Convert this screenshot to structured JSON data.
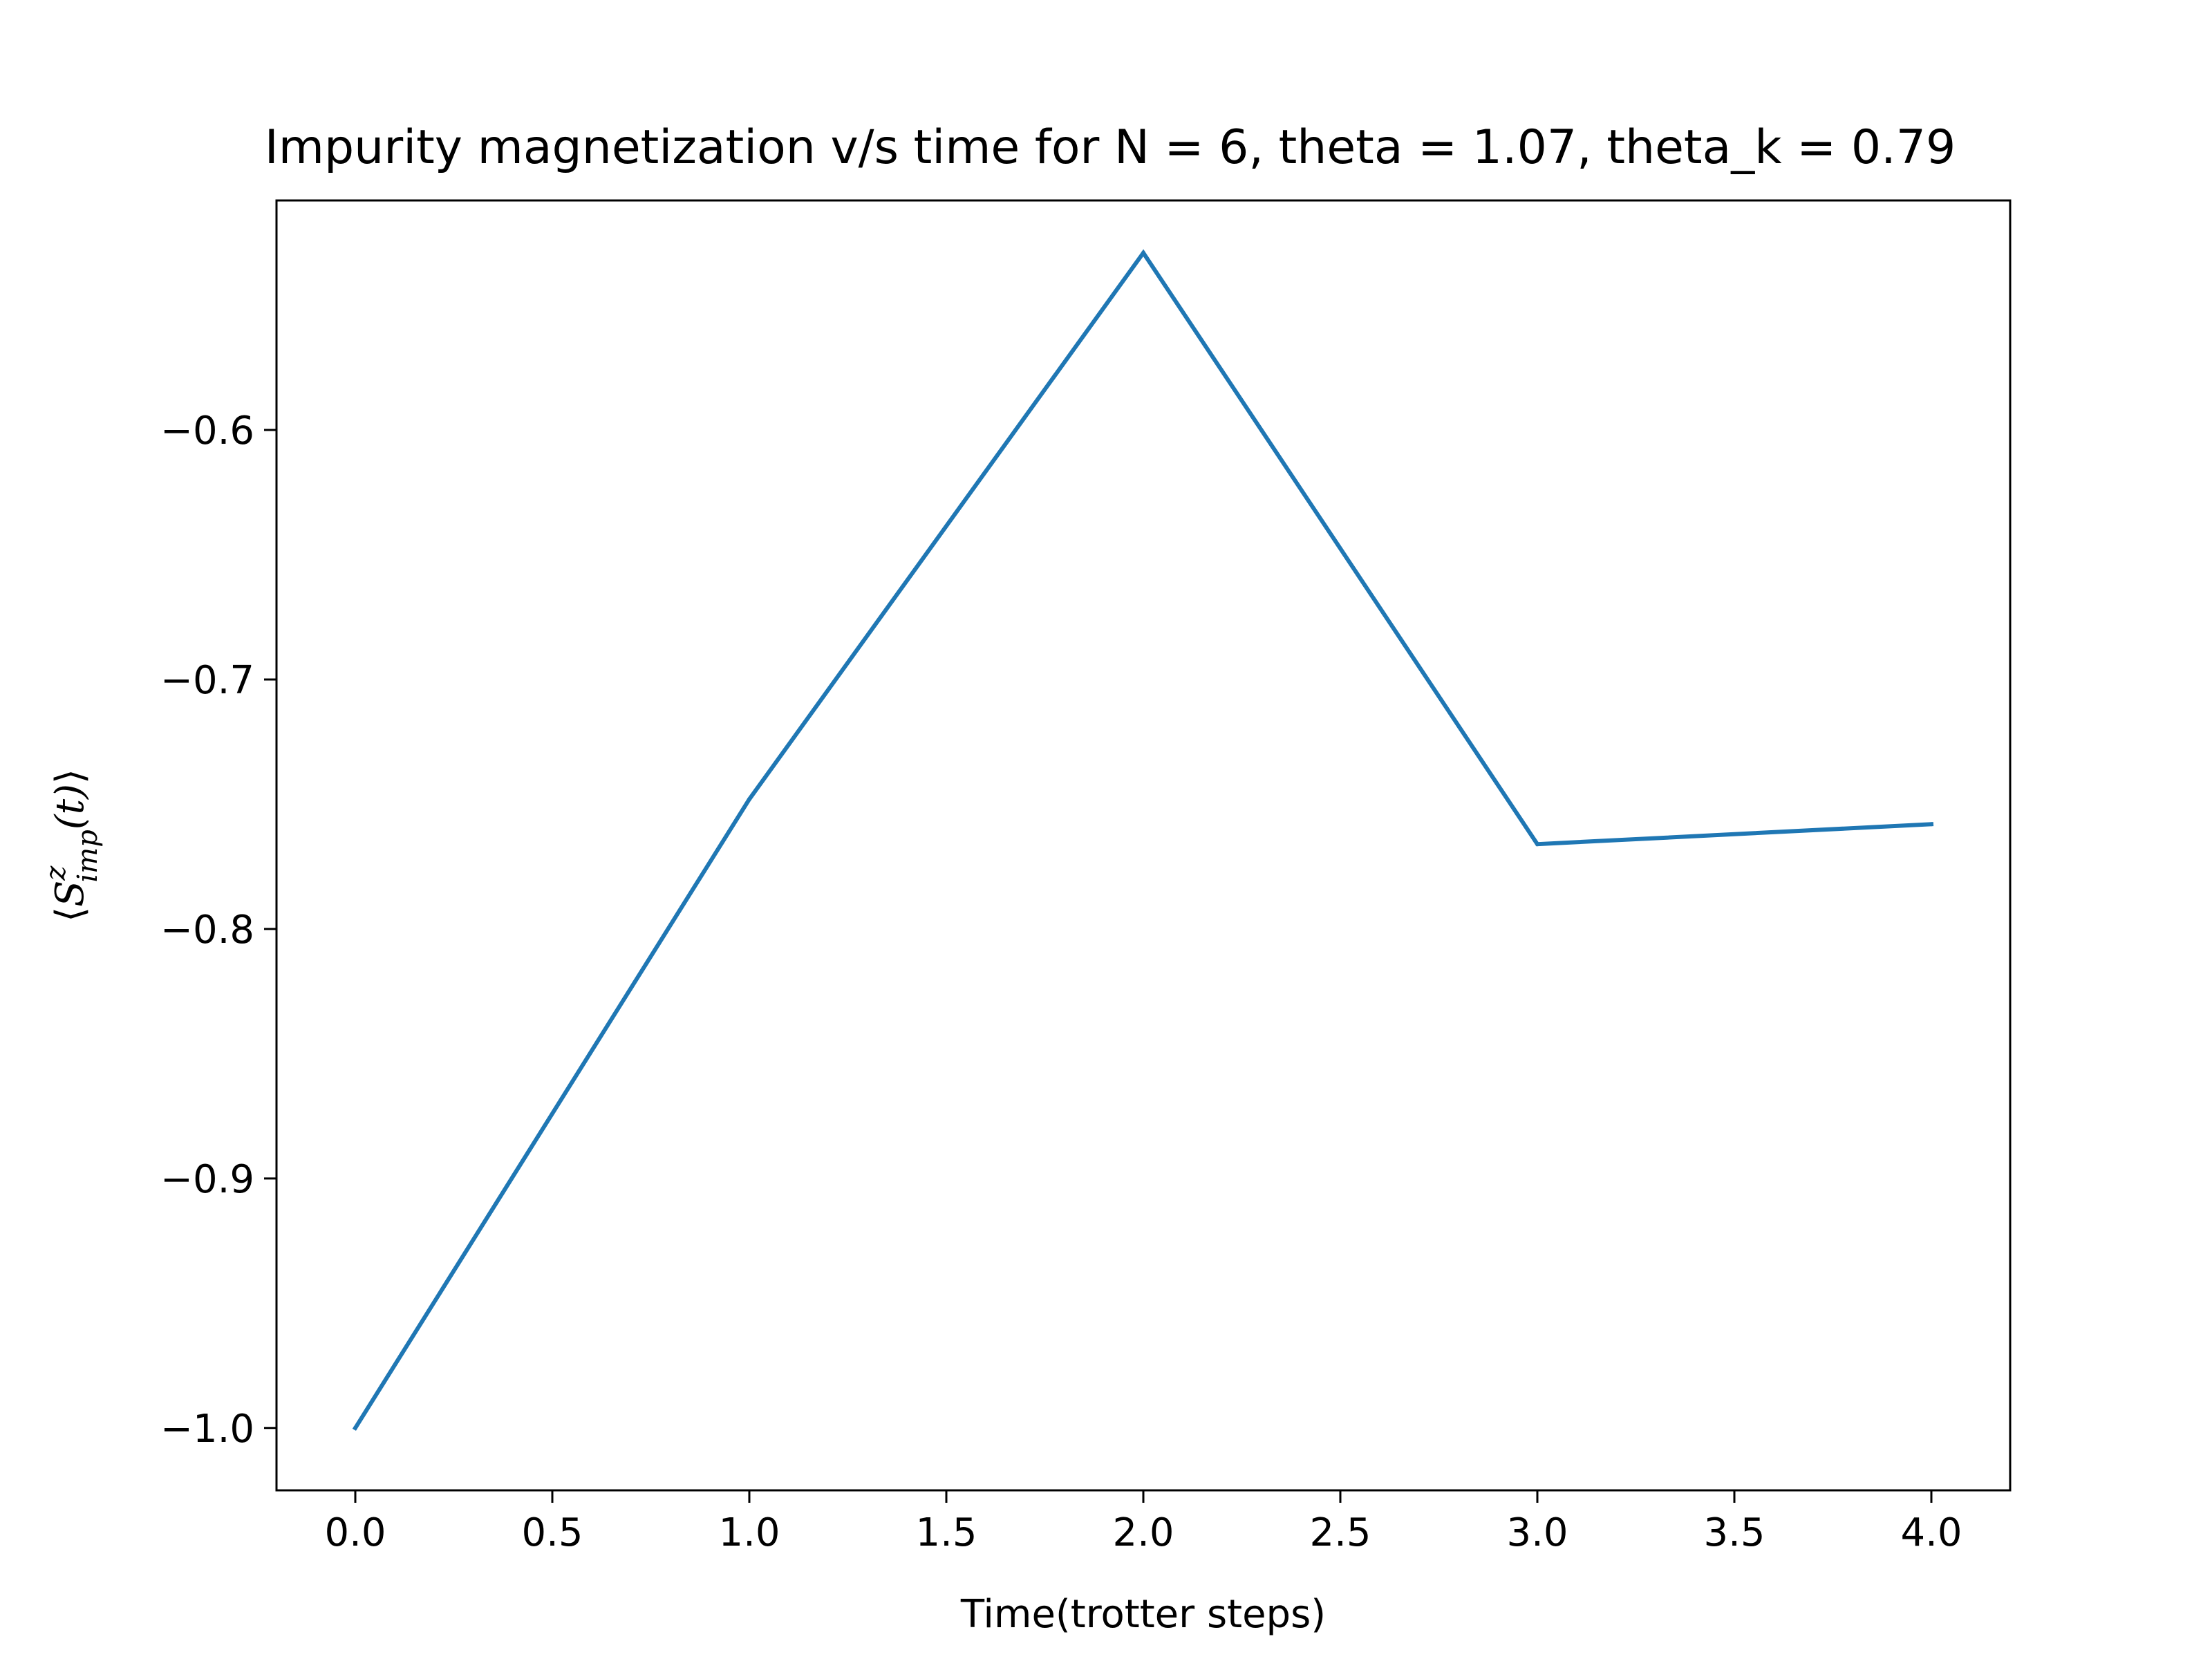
{
  "chart_data": {
    "type": "line",
    "title": "Impurity magnetization v/s time for N = 6, theta = 1.07, theta_k = 0.79",
    "xlabel": "Time(trotter steps)",
    "ylabel": "⟨S_imp^z(t)⟩",
    "ylabel_parts": {
      "left": "⟨",
      "base": "S",
      "sup": "z",
      "sub": "imp",
      "arg": "(t)",
      "right": "⟩"
    },
    "xlim": [
      -0.2,
      4.2
    ],
    "ylim": [
      -1.025,
      -0.508
    ],
    "xticks": [
      0.0,
      0.5,
      1.0,
      1.5,
      2.0,
      2.5,
      3.0,
      3.5,
      4.0
    ],
    "xtick_labels": [
      "0.0",
      "0.5",
      "1.0",
      "1.5",
      "2.0",
      "2.5",
      "3.0",
      "3.5",
      "4.0"
    ],
    "yticks": [
      -1.0,
      -0.9,
      -0.8,
      -0.7,
      -0.6
    ],
    "ytick_labels": [
      "−1.0",
      "−0.9",
      "−0.8",
      "−0.7",
      "−0.6"
    ],
    "grid": false,
    "series": [
      {
        "color": "#1f77b4",
        "x": [
          0,
          1,
          2,
          3,
          4
        ],
        "y": [
          -1.0,
          -0.748,
          -0.529,
          -0.766,
          -0.758
        ]
      }
    ]
  }
}
